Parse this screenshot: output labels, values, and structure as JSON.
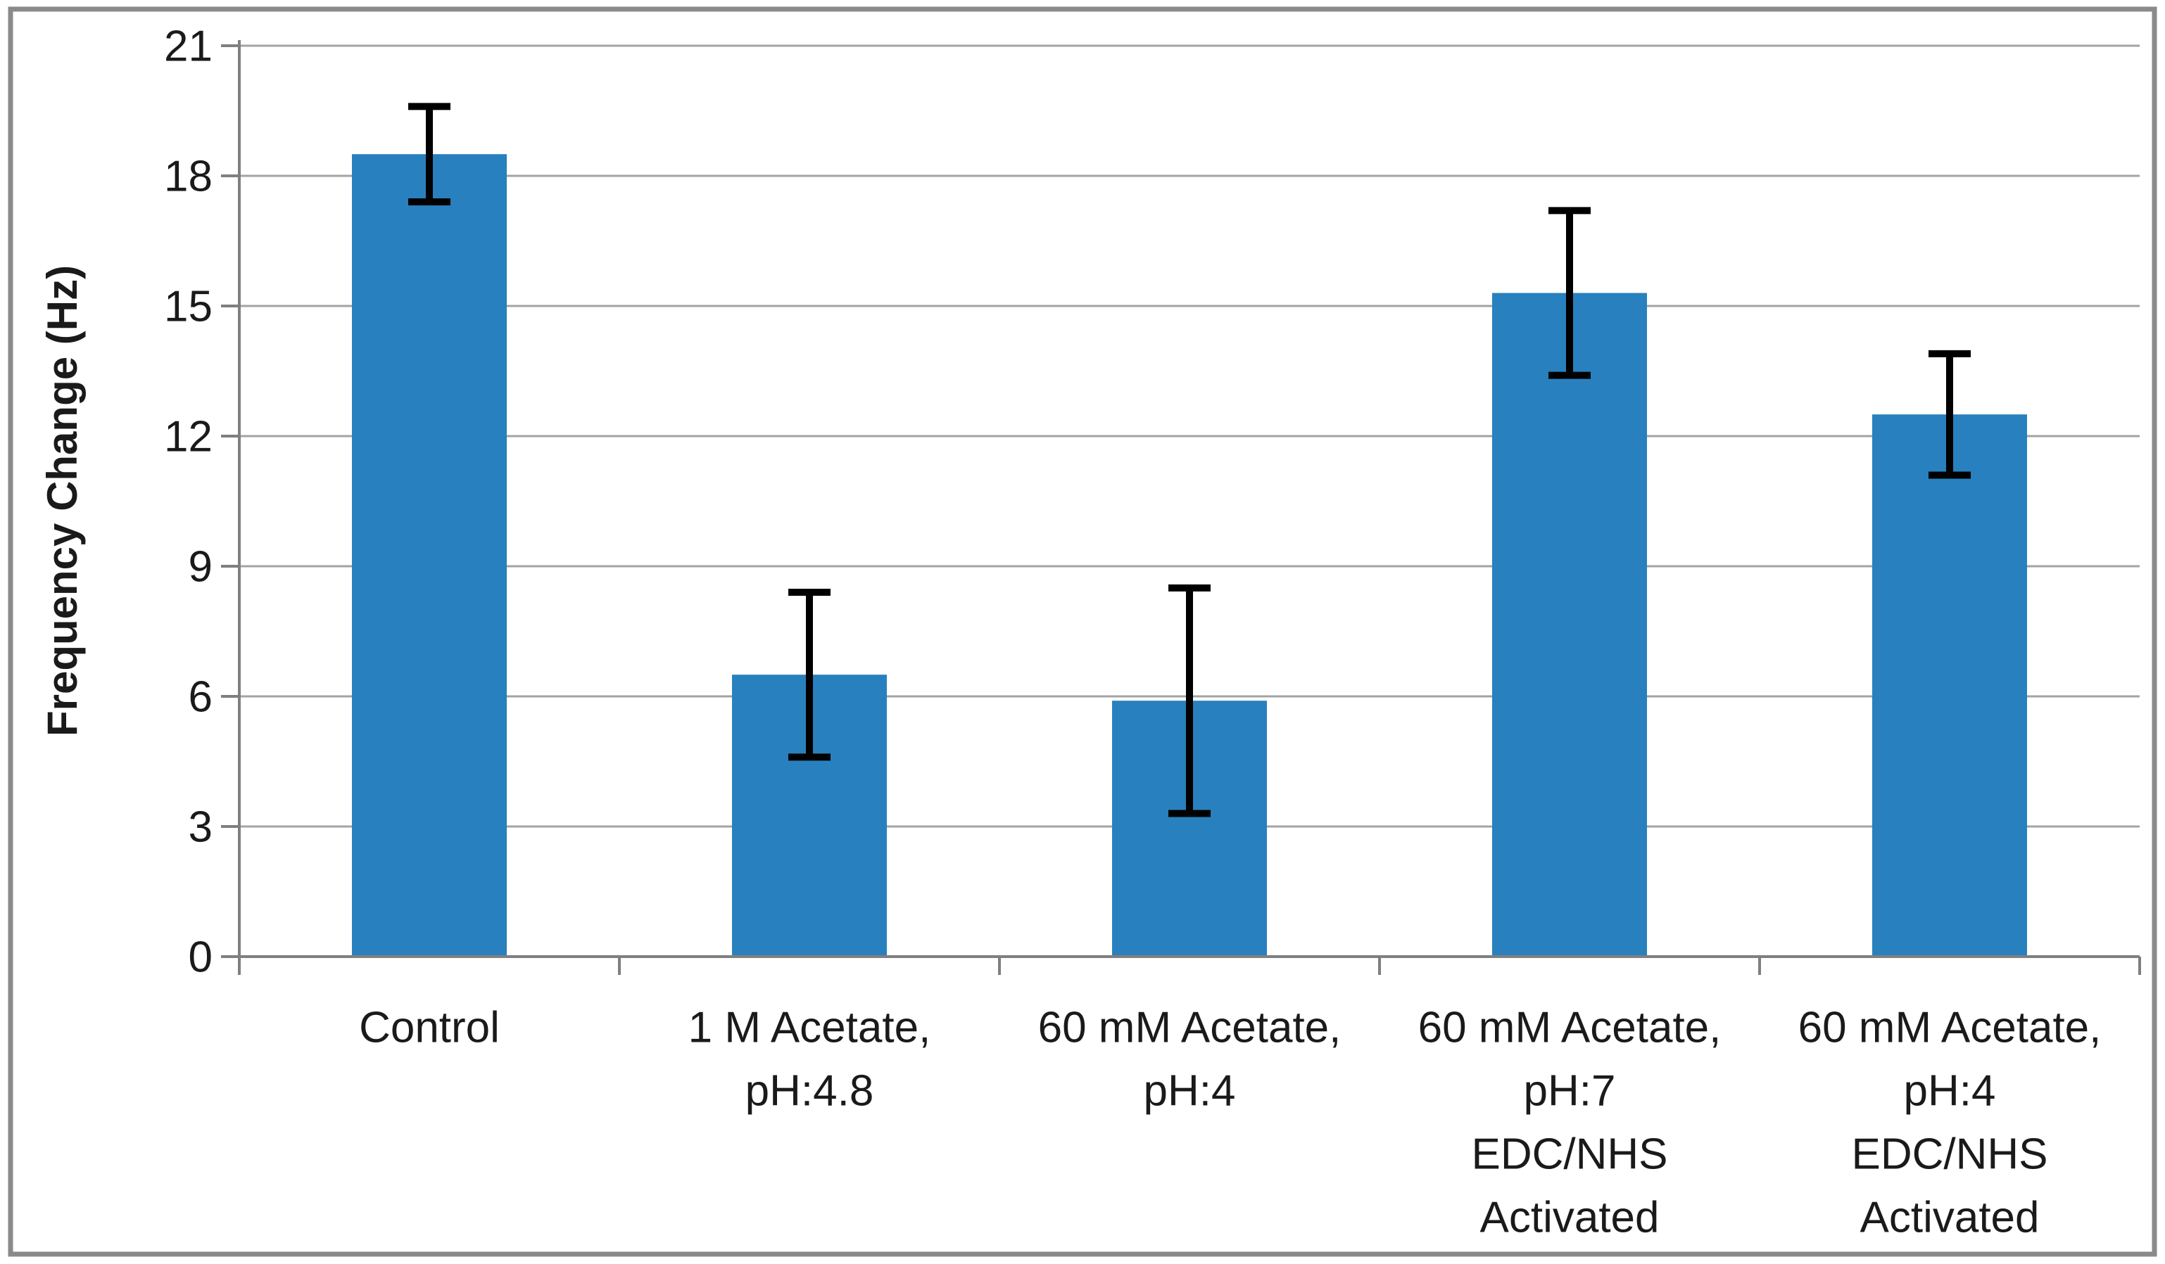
{
  "figure": {
    "background": "#ffffff",
    "border_color": "#8a8a8a",
    "axis_color": "#7f7f7f",
    "gridline_color": "#a3a3a3",
    "error_bar_color": "#000000"
  },
  "chart_data": {
    "type": "bar",
    "title": "",
    "xlabel": "",
    "ylabel": "Frequency Change (Hz)",
    "ylim": [
      0,
      21
    ],
    "yticks": [
      0,
      3,
      6,
      9,
      12,
      15,
      18,
      21
    ],
    "grid": true,
    "legend": false,
    "bar_color": "#2980be",
    "categories": [
      [
        "Control"
      ],
      [
        "1 M Acetate,",
        "pH:4.8"
      ],
      [
        "60 mM Acetate,",
        "pH:4"
      ],
      [
        "60 mM Acetate,",
        "pH:7",
        "EDC/NHS",
        "Activated"
      ],
      [
        "60 mM Acetate,",
        "pH:4",
        "EDC/NHS",
        "Activated"
      ]
    ],
    "values": [
      18.5,
      6.5,
      5.9,
      15.3,
      12.5
    ],
    "error_bars": [
      1.1,
      1.9,
      2.6,
      1.9,
      1.4
    ]
  }
}
